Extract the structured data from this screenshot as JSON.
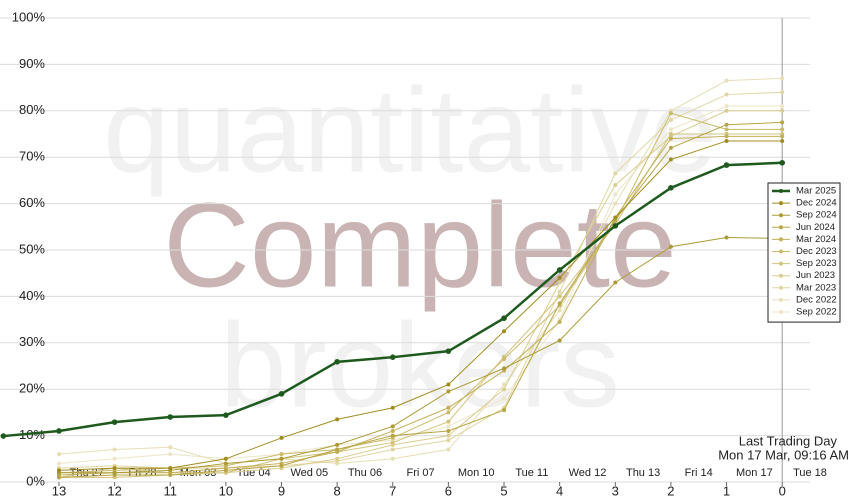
{
  "chart_data": {
    "type": "line",
    "watermark": [
      "quantitative",
      "Complete",
      "brokers"
    ],
    "x": [
      14,
      13,
      12,
      11,
      10,
      9,
      8,
      7,
      6,
      5,
      4,
      3,
      2,
      1,
      0
    ],
    "xlim": [
      14.06,
      -0.5
    ],
    "xticks": [
      13,
      12,
      11,
      10,
      9,
      8,
      7,
      6,
      5,
      4,
      3,
      2,
      1,
      0
    ],
    "date_labels": [
      "Thu 27",
      "Fri 28",
      "Mon 03",
      "Tue 04",
      "Wed 05",
      "Thu 06",
      "Fri 07",
      "Mon 10",
      "Tue 11",
      "Wed 12",
      "Thu 13",
      "Fri 14",
      "Mon 17",
      "Tue 18"
    ],
    "ylim": [
      0,
      100
    ],
    "yticks": [
      {
        "value": 0,
        "label": "0%"
      },
      {
        "value": 10,
        "label": "10%"
      },
      {
        "value": 20,
        "label": "20%"
      },
      {
        "value": 30,
        "label": "30%"
      },
      {
        "value": 40,
        "label": "40%"
      },
      {
        "value": 50,
        "label": "50%"
      },
      {
        "value": 60,
        "label": "60%"
      },
      {
        "value": 70,
        "label": "70%"
      },
      {
        "value": 80,
        "label": "80%"
      },
      {
        "value": 90,
        "label": "90%"
      },
      {
        "value": 100,
        "label": "100%"
      }
    ],
    "grid": true,
    "marker_line_x": 0,
    "annotation": [
      "Last Trading Day",
      "Mon 17 Mar, 09:16 AM"
    ],
    "legend": "right",
    "series": [
      {
        "name": "Mar 2025",
        "color": "#1e5a1e",
        "values": [
          9.9,
          11.0,
          12.9,
          14.0,
          14.4,
          19.0,
          25.9,
          26.9,
          28.2,
          35.3,
          45.7,
          55.2,
          63.4,
          68.3,
          68.8
        ]
      },
      {
        "name": "Dec 2024",
        "color": "#a08c1e",
        "values": [
          null,
          2.5,
          3,
          3,
          5,
          9.5,
          13.5,
          16,
          21,
          32.5,
          44,
          57,
          69.5,
          73.5,
          73.5
        ]
      },
      {
        "name": "Sep 2024",
        "color": "#ad9a35",
        "values": [
          null,
          2,
          2,
          2.5,
          4,
          5,
          8,
          12,
          19.5,
          24.5,
          30.5,
          43,
          50.7,
          52.7,
          52.5
        ]
      },
      {
        "name": "Jun 2024",
        "color": "#b8a545",
        "values": [
          null,
          1,
          1.5,
          1.5,
          2.5,
          3.5,
          7,
          10,
          11,
          15.5,
          38.5,
          56.5,
          72,
          77,
          77.5
        ]
      },
      {
        "name": "Mar 2024",
        "color": "#c2b058",
        "values": [
          null,
          1.5,
          2,
          2,
          3,
          4,
          6.5,
          11,
          16,
          24,
          34.5,
          57,
          74,
          74.5,
          74.5
        ]
      },
      {
        "name": "Dec 2023",
        "color": "#cbba6a",
        "values": [
          null,
          2,
          2.5,
          3,
          3.5,
          6,
          7,
          9.5,
          15,
          26.5,
          38,
          56,
          79.5,
          76,
          76
        ]
      },
      {
        "name": "Sep 2023",
        "color": "#d3c47c",
        "values": [
          null,
          1,
          1,
          1.5,
          2,
          5,
          6.5,
          8.5,
          13,
          27,
          40,
          55.5,
          75,
          75,
          75
        ]
      },
      {
        "name": "Jun 2023",
        "color": "#dacd8e",
        "values": [
          null,
          1,
          3,
          2,
          2,
          3,
          5,
          8,
          10,
          20,
          43,
          64,
          74.5,
          80,
          80
        ]
      },
      {
        "name": "Mar 2023",
        "color": "#e0d6a2",
        "values": [
          null,
          3,
          3.5,
          3,
          3,
          3.5,
          4.5,
          7,
          9,
          16,
          41,
          66.5,
          78,
          83.5,
          84
        ]
      },
      {
        "name": "Dec 2022",
        "color": "#e6dfb4",
        "values": [
          null,
          6,
          7,
          7.5,
          4,
          5,
          4,
          5,
          7,
          21,
          37,
          60,
          80,
          86.5,
          87
        ]
      },
      {
        "name": "Sep 2022",
        "color": "#ece6c6",
        "values": [
          null,
          4,
          5,
          6,
          5,
          6,
          8,
          9,
          12,
          18,
          35,
          62,
          76,
          81,
          81
        ]
      }
    ]
  }
}
